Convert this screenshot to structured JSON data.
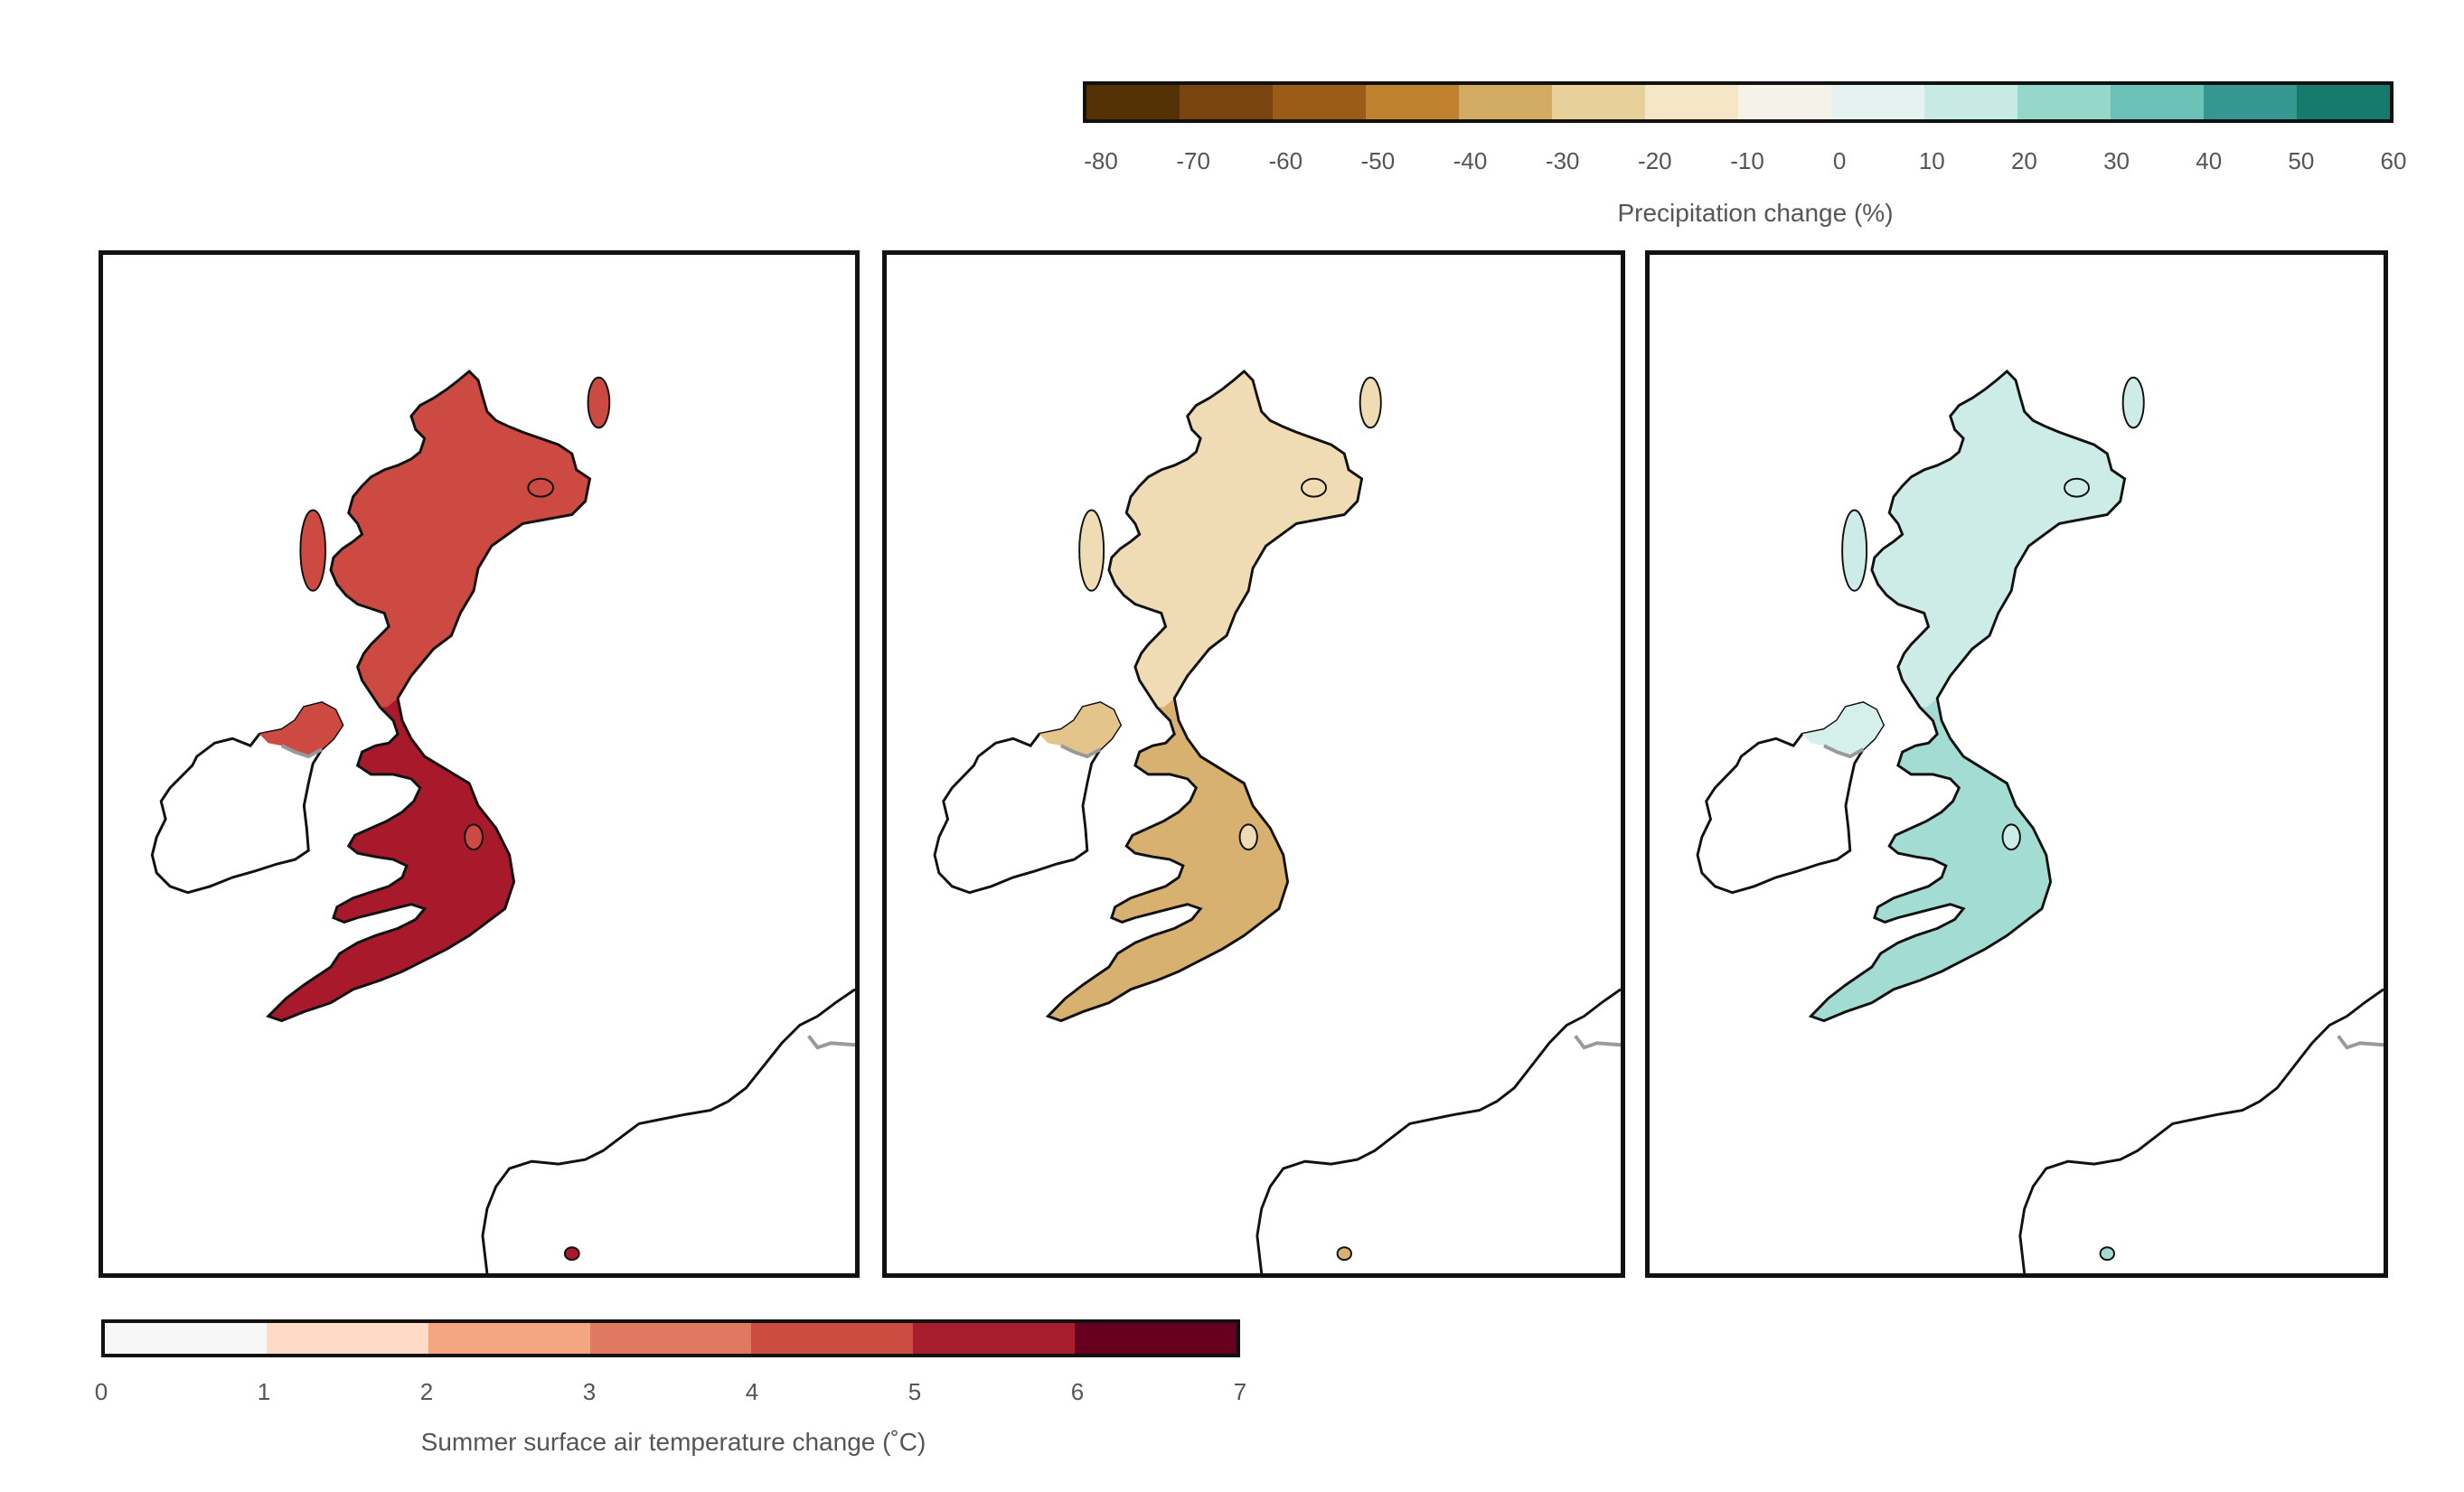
{
  "precip_scale": {
    "label": "Precipitation change (%)",
    "ticks": [
      "-80",
      "-70",
      "-60",
      "-50",
      "-40",
      "-30",
      "-20",
      "-10",
      "0",
      "10",
      "20",
      "30",
      "40",
      "50",
      "60"
    ],
    "colors": [
      "#543005",
      "#7a4410",
      "#9b5c18",
      "#bf812d",
      "#d2ab62",
      "#e8d09a",
      "#f5e7c6",
      "#f5f2ea",
      "#e6f2ef",
      "#c7eae5",
      "#96d7cc",
      "#6cc2b6",
      "#35978f",
      "#167a6c"
    ]
  },
  "temp_scale": {
    "label": "Summer surface air temperature change (˚C)",
    "ticks": [
      "0",
      "1",
      "2",
      "3",
      "4",
      "5",
      "6",
      "7"
    ],
    "colors": [
      "#f7f7f7",
      "#fddbc7",
      "#f4a582",
      "#e07862",
      "#cc4c42",
      "#a81d2e",
      "#67001f"
    ]
  },
  "maps": [
    {
      "name": "temperature",
      "variable": "temperature change",
      "fill_north": "#cd4a42",
      "fill_south": "#a8192c",
      "fill_ni": "#cd4a42"
    },
    {
      "name": "precipitation-dry",
      "variable": "precipitation change",
      "fill_north": "#efdcb4",
      "fill_south": "#d8b070",
      "fill_ni": "#e3c58c"
    },
    {
      "name": "precipitation-wet",
      "variable": "precipitation change",
      "fill_north": "#cdece7",
      "fill_south": "#a3dcd3",
      "fill_ni": "#d5efeb"
    }
  ]
}
